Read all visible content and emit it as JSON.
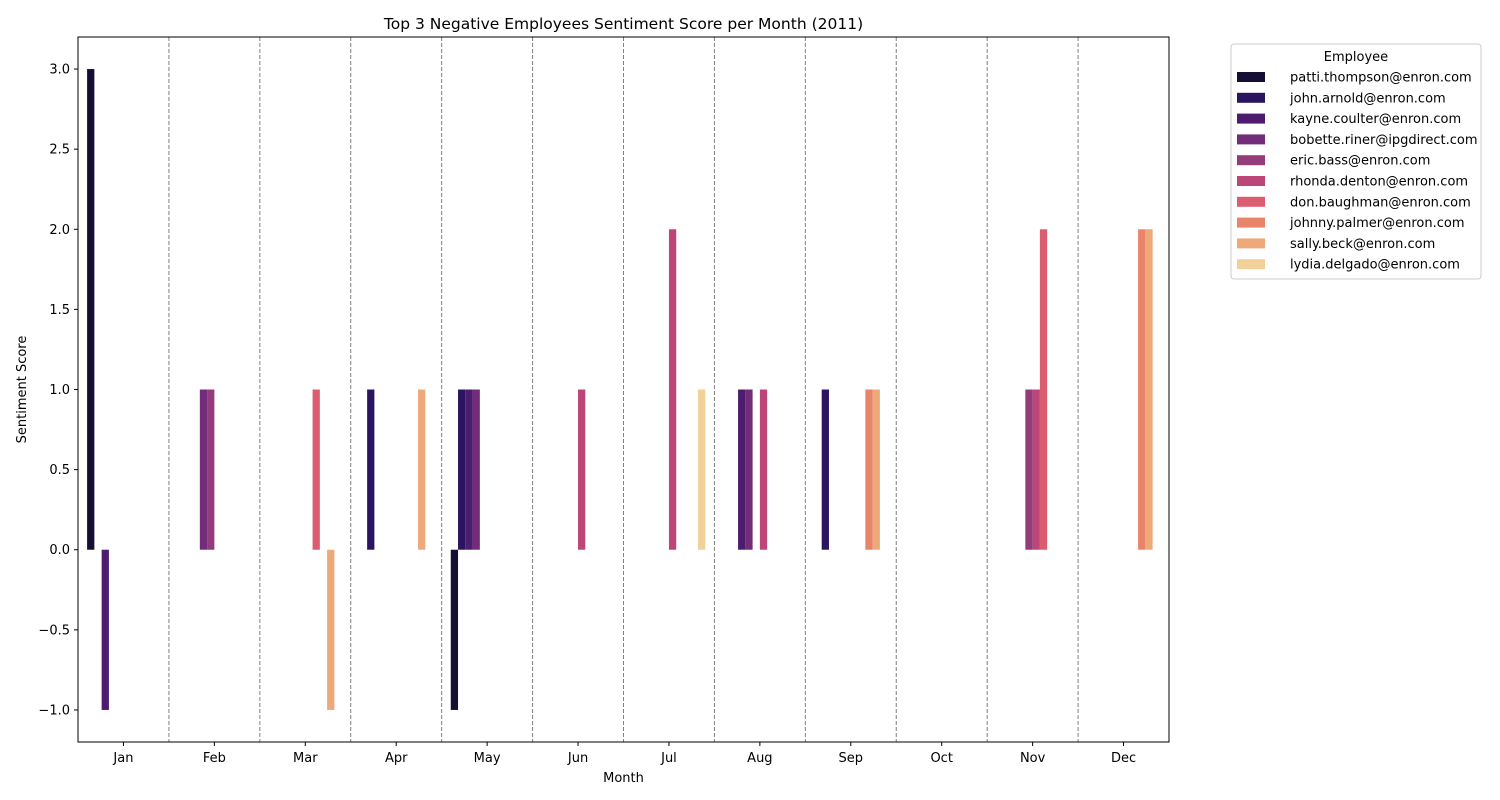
{
  "chart_data": {
    "type": "bar",
    "title": "Top 3 Negative Employees Sentiment Score per Month (2011)",
    "xlabel": "Month",
    "ylabel": "Sentiment Score",
    "ylim": [
      -1.2,
      3.2
    ],
    "yticks": [
      -1.0,
      -0.5,
      0.0,
      0.5,
      1.0,
      1.5,
      2.0,
      2.5,
      3.0
    ],
    "ytick_labels": [
      "−1.0",
      "−0.5",
      "0.0",
      "0.5",
      "1.0",
      "1.5",
      "2.0",
      "2.5",
      "3.0"
    ],
    "categories": [
      "Jan",
      "Feb",
      "Mar",
      "Apr",
      "May",
      "Jun",
      "Jul",
      "Aug",
      "Sep",
      "Oct",
      "Nov",
      "Dec"
    ],
    "month_separators": "dashed-gray",
    "legend": {
      "title": "Employee",
      "placement": "outside-top-right"
    },
    "series": [
      {
        "name": "patti.thompson@enron.com",
        "color": "#150f33",
        "values": [
          3,
          null,
          null,
          null,
          -1,
          null,
          null,
          null,
          null,
          null,
          null,
          null
        ]
      },
      {
        "name": "john.arnold@enron.com",
        "color": "#2c1560",
        "values": [
          null,
          null,
          null,
          1,
          1,
          null,
          null,
          null,
          1,
          null,
          null,
          null
        ]
      },
      {
        "name": "kayne.coulter@enron.com",
        "color": "#4d1c6e",
        "values": [
          -1,
          null,
          null,
          null,
          1,
          null,
          null,
          1,
          null,
          null,
          null,
          null
        ]
      },
      {
        "name": "bobette.riner@ipgdirect.com",
        "color": "#722c7a",
        "values": [
          null,
          1,
          null,
          null,
          1,
          null,
          null,
          1,
          null,
          null,
          null,
          null
        ]
      },
      {
        "name": "eric.bass@enron.com",
        "color": "#943c7a",
        "values": [
          null,
          1,
          null,
          null,
          null,
          null,
          null,
          null,
          null,
          null,
          1,
          null
        ]
      },
      {
        "name": "rhonda.denton@enron.com",
        "color": "#bb4677",
        "values": [
          null,
          null,
          null,
          null,
          null,
          1,
          2,
          1,
          null,
          null,
          1,
          null
        ]
      },
      {
        "name": "don.baughman@enron.com",
        "color": "#dc5d70",
        "values": [
          null,
          null,
          1,
          null,
          null,
          null,
          null,
          null,
          null,
          null,
          2,
          null
        ]
      },
      {
        "name": "johnny.palmer@enron.com",
        "color": "#e9846a",
        "values": [
          null,
          null,
          null,
          null,
          null,
          null,
          null,
          null,
          1,
          null,
          null,
          2
        ]
      },
      {
        "name": "sally.beck@enron.com",
        "color": "#eea97b",
        "values": [
          null,
          null,
          -1,
          1,
          null,
          null,
          null,
          null,
          1,
          null,
          null,
          2
        ]
      },
      {
        "name": "lydia.delgado@enron.com",
        "color": "#f2d09a",
        "values": [
          null,
          null,
          null,
          null,
          null,
          null,
          1,
          null,
          null,
          null,
          null,
          null
        ]
      }
    ]
  }
}
